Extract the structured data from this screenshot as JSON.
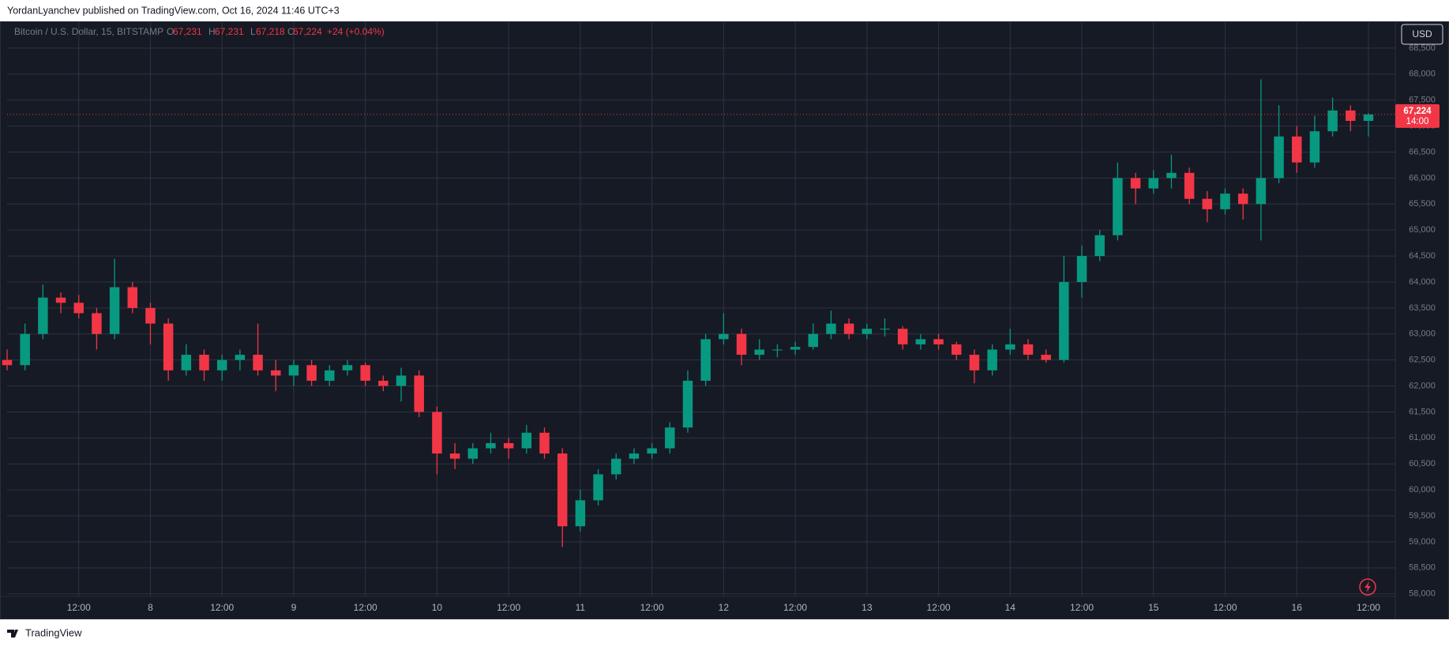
{
  "header": {
    "published": "YordanLyanchev published on TradingView.com, Oct 16, 2024 11:46 UTC+3"
  },
  "footer": {
    "brand": "TradingView"
  },
  "chart_data": {
    "type": "candlestick",
    "symbol": "Bitcoin / U.S. Dollar, 15, BITSTAMP",
    "legend": {
      "o_label": "O",
      "o": "67,231",
      "h_label": "H",
      "h": "67,231",
      "l_label": "L",
      "l": "67,218",
      "c_label": "C",
      "c": "67,224",
      "change": "+24 (+0.04%)"
    },
    "currency": "USD",
    "last_price": {
      "value": 67224,
      "label": "67,224"
    },
    "countdown": "14:00",
    "up_color": "#089981",
    "down_color": "#f23645",
    "grid": true,
    "categories": [
      null,
      null,
      null,
      null,
      "12:00",
      null,
      null,
      null,
      "8",
      null,
      null,
      null,
      "12:00",
      null,
      null,
      null,
      "9",
      null,
      null,
      null,
      "12:00",
      null,
      null,
      null,
      "10",
      null,
      null,
      null,
      "12:00",
      null,
      null,
      null,
      "11",
      null,
      null,
      null,
      "12:00",
      null,
      null,
      null,
      "12",
      null,
      null,
      null,
      "12:00",
      null,
      null,
      null,
      "13",
      null,
      null,
      null,
      "12:00",
      null,
      null,
      null,
      "14",
      null,
      null,
      null,
      "12:00",
      null,
      null,
      null,
      "15",
      null,
      null,
      null,
      "12:00",
      null,
      null,
      null,
      "16",
      null,
      null,
      null,
      "12:00"
    ],
    "open": [
      62500,
      62400,
      63000,
      63700,
      63600,
      63400,
      63000,
      63900,
      63500,
      63200,
      62300,
      62600,
      62300,
      62500,
      62600,
      62300,
      62200,
      62400,
      62100,
      62300,
      62400,
      62100,
      62000,
      62200,
      61500,
      60700,
      60600,
      60800,
      60900,
      60800,
      61100,
      60700,
      59300,
      59800,
      60300,
      60600,
      60700,
      60800,
      61200,
      62100,
      62900,
      63000,
      62600,
      62700,
      62700,
      62750,
      63000,
      63200,
      63000,
      63100,
      63100,
      62800,
      62900,
      62800,
      62600,
      62300,
      62700,
      62800,
      62600,
      62500,
      64000,
      64500,
      64900,
      66000,
      65800,
      66000,
      66100,
      65600,
      65400,
      65700,
      65500,
      66000,
      66800,
      66300,
      66900,
      67300,
      67100
    ],
    "high": [
      62700,
      63200,
      63950,
      63800,
      63750,
      63500,
      64450,
      64000,
      63600,
      63300,
      62800,
      62700,
      62600,
      62700,
      63200,
      62500,
      62500,
      62500,
      62400,
      62500,
      62450,
      62200,
      62350,
      62300,
      61600,
      60900,
      60900,
      61100,
      61000,
      61250,
      61200,
      60800,
      60000,
      60400,
      60700,
      60800,
      60900,
      61300,
      62300,
      63000,
      63400,
      63100,
      62900,
      62800,
      62850,
      63200,
      63450,
      63300,
      63200,
      63300,
      63150,
      63000,
      63000,
      62850,
      62700,
      62800,
      63100,
      62900,
      62700,
      64500,
      64700,
      65000,
      66300,
      66100,
      66150,
      66450,
      66200,
      65750,
      65800,
      65800,
      67900,
      67400,
      67000,
      67200,
      67550,
      67400,
      67250
    ],
    "low": [
      62300,
      62300,
      62900,
      63400,
      63300,
      62700,
      62900,
      63400,
      62800,
      62100,
      62200,
      62100,
      62100,
      62300,
      62200,
      61900,
      62000,
      62000,
      62000,
      62200,
      62000,
      61900,
      61700,
      61400,
      60300,
      60400,
      60500,
      60700,
      60600,
      60700,
      60600,
      58900,
      59200,
      59700,
      60200,
      60500,
      60600,
      60700,
      61100,
      62000,
      62800,
      62400,
      62500,
      62550,
      62600,
      62700,
      62900,
      62900,
      62900,
      62950,
      62700,
      62700,
      62700,
      62500,
      62050,
      62200,
      62600,
      62500,
      62450,
      62450,
      63700,
      64400,
      64800,
      65500,
      65700,
      65800,
      65500,
      65150,
      65300,
      65200,
      64800,
      65900,
      66100,
      66200,
      66800,
      66900,
      66800
    ],
    "close": [
      62400,
      63000,
      63700,
      63600,
      63400,
      63000,
      63900,
      63500,
      63200,
      62300,
      62600,
      62300,
      62500,
      62600,
      62300,
      62200,
      62400,
      62100,
      62300,
      62400,
      62100,
      62000,
      62200,
      61500,
      60700,
      60600,
      60800,
      60900,
      60800,
      61100,
      60700,
      59300,
      59800,
      60300,
      60600,
      60700,
      60800,
      61200,
      62100,
      62900,
      63000,
      62600,
      62700,
      62700,
      62750,
      63000,
      63200,
      63000,
      63100,
      63100,
      62800,
      62900,
      62800,
      62600,
      62300,
      62700,
      62800,
      62600,
      62500,
      64000,
      64500,
      64900,
      66000,
      65800,
      66000,
      66100,
      65600,
      65400,
      65700,
      65500,
      66000,
      66800,
      66300,
      66900,
      67300,
      67100,
      67224
    ],
    "ylim": [
      57950,
      69000
    ],
    "yticks": [
      {
        "value": 58000,
        "label": "58,000"
      },
      {
        "value": 58500,
        "label": "58,500"
      },
      {
        "value": 59000,
        "label": "59,000"
      },
      {
        "value": 59500,
        "label": "59,500"
      },
      {
        "value": 60000,
        "label": "60,000"
      },
      {
        "value": 60500,
        "label": "60,500"
      },
      {
        "value": 61000,
        "label": "61,000"
      },
      {
        "value": 61500,
        "label": "61,500"
      },
      {
        "value": 62000,
        "label": "62,000"
      },
      {
        "value": 62500,
        "label": "62,500"
      },
      {
        "value": 63000,
        "label": "63,000"
      },
      {
        "value": 63500,
        "label": "63,500"
      },
      {
        "value": 64000,
        "label": "64,000"
      },
      {
        "value": 64500,
        "label": "64,500"
      },
      {
        "value": 65000,
        "label": "65,000"
      },
      {
        "value": 65500,
        "label": "65,500"
      },
      {
        "value": 66000,
        "label": "66,000"
      },
      {
        "value": 66500,
        "label": "66,500"
      },
      {
        "value": 67000,
        "label": "67,000"
      },
      {
        "value": 67500,
        "label": "67,500"
      },
      {
        "value": 68000,
        "label": "68,000"
      },
      {
        "value": 68500,
        "label": "68,500"
      }
    ]
  }
}
